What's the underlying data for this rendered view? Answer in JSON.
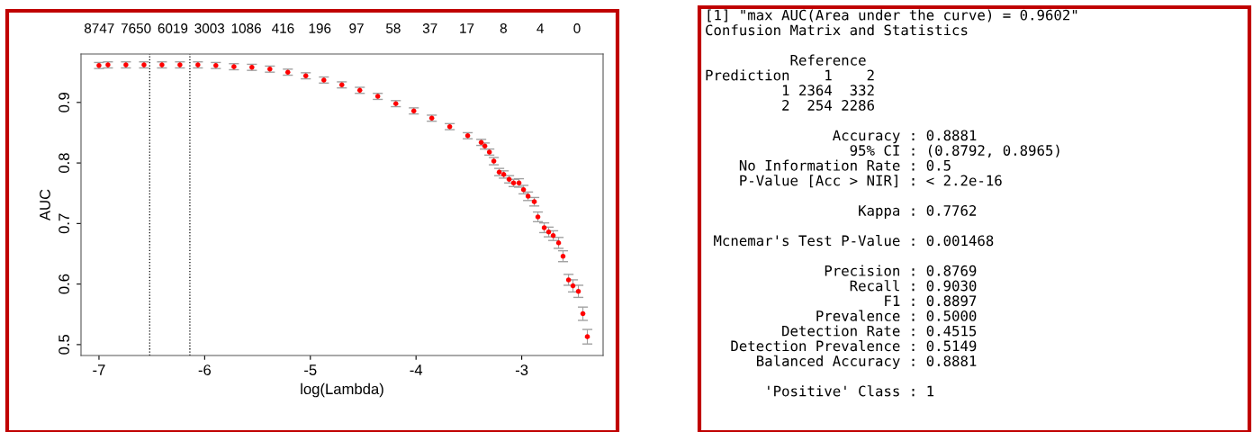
{
  "chart_data": [
    {
      "type": "scatter",
      "xlabel": "log(Lambda)",
      "ylabel": "AUC",
      "color": "#ff0000",
      "marker": "circle",
      "grid": false,
      "x": [
        -7.0,
        -6.915,
        -6.745,
        -6.574,
        -6.404,
        -6.234,
        -6.064,
        -5.894,
        -5.723,
        -5.553,
        -5.383,
        -5.213,
        -5.043,
        -4.872,
        -4.702,
        -4.532,
        -4.362,
        -4.191,
        -4.021,
        -3.851,
        -3.681,
        -3.511,
        -3.383,
        -3.349,
        -3.306,
        -3.264,
        -3.213,
        -3.17,
        -3.119,
        -3.077,
        -3.026,
        -2.983,
        -2.94,
        -2.881,
        -2.847,
        -2.787,
        -2.745,
        -2.702,
        -2.651,
        -2.609,
        -2.557,
        -2.515,
        -2.464,
        -2.421,
        -2.379
      ],
      "values": [
        0.961,
        0.962,
        0.962,
        0.962,
        0.962,
        0.962,
        0.962,
        0.961,
        0.959,
        0.958,
        0.955,
        0.95,
        0.944,
        0.937,
        0.929,
        0.92,
        0.91,
        0.898,
        0.886,
        0.874,
        0.86,
        0.845,
        0.834,
        0.828,
        0.818,
        0.803,
        0.785,
        0.781,
        0.773,
        0.767,
        0.767,
        0.756,
        0.745,
        0.736,
        0.711,
        0.693,
        0.686,
        0.68,
        0.668,
        0.646,
        0.607,
        0.597,
        0.588,
        0.551,
        0.513
      ],
      "errors": [
        0.005,
        0.005,
        0.005,
        0.005,
        0.005,
        0.005,
        0.005,
        0.005,
        0.005,
        0.005,
        0.005,
        0.005,
        0.005,
        0.005,
        0.005,
        0.005,
        0.005,
        0.005,
        0.005,
        0.005,
        0.005,
        0.005,
        0.005,
        0.005,
        0.005,
        0.006,
        0.006,
        0.006,
        0.006,
        0.006,
        0.007,
        0.007,
        0.007,
        0.007,
        0.008,
        0.008,
        0.008,
        0.008,
        0.009,
        0.009,
        0.009,
        0.01,
        0.01,
        0.011,
        0.012
      ],
      "xlim": [
        -7.17,
        -2.23
      ],
      "xticks": [
        -7,
        -6,
        -5,
        -4,
        -3
      ],
      "ylim": [
        0.482,
        0.98
      ],
      "yticks": [
        0.5,
        0.6,
        0.7,
        0.8,
        0.9
      ],
      "annotations": [
        "8747",
        "7650",
        "6019",
        "3003",
        "1086",
        "416",
        "196",
        "97",
        "58",
        "37",
        "17",
        "8",
        "4",
        "0"
      ],
      "ref_lines": [
        {
          "axis": "x",
          "value": -6.52,
          "color": "#000000",
          "line_style": "dotted"
        },
        {
          "axis": "x",
          "value": -6.14,
          "color": "#000000",
          "line_style": "dotted"
        }
      ]
    },
    {
      "type": "other",
      "annotations": [
        "[1] \"max AUC(Area under the curve) = 0.9602\"\nConfusion Matrix and Statistics\n\n          Reference\nPrediction    1    2\n         1 2364  332\n         2  254 2286\n\n               Accuracy : 0.8881\n                 95% CI : (0.8792, 0.8965)\n    No Information Rate : 0.5\n    P-Value [Acc > NIR] : < 2.2e-16\n\n                  Kappa : 0.7762\n\n Mcnemar's Test P-Value : 0.001468\n\n              Precision : 0.8769\n                 Recall : 0.9030\n                     F1 : 0.8897\n             Prevalence : 0.5000\n         Detection Rate : 0.4515\n   Detection Prevalence : 0.5149\n      Balanced Accuracy : 0.8881\n\n       'Positive' Class : 1"
      ]
    }
  ]
}
